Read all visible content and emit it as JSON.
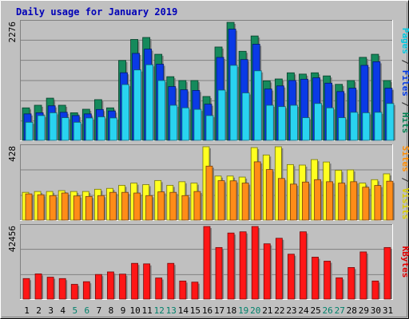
{
  "chart_data": {
    "type": "bar",
    "title": "Daily usage for January 2019",
    "categories": [
      "1",
      "2",
      "3",
      "4",
      "5",
      "6",
      "7",
      "8",
      "9",
      "10",
      "11",
      "12",
      "13",
      "14",
      "15",
      "16",
      "17",
      "18",
      "19",
      "20",
      "21",
      "22",
      "23",
      "24",
      "25",
      "26",
      "27",
      "28",
      "29",
      "30",
      "31"
    ],
    "weekend_days": [
      "5",
      "6",
      "12",
      "13",
      "19",
      "20",
      "26",
      "27"
    ],
    "panels": [
      {
        "id": "hits",
        "max_label": "2276",
        "ymax": 2276,
        "axis_title": [
          {
            "text": "Pages",
            "color": "#00c8e0"
          },
          {
            "text": " / ",
            "color": "#222222"
          },
          {
            "text": "Files",
            "color": "#0038e8"
          },
          {
            "text": " / ",
            "color": "#222222"
          },
          {
            "text": "Hits",
            "color": "#008050"
          }
        ],
        "series": [
          {
            "name": "Hits",
            "color": "#158a5c",
            "values": [
              627,
              677,
              814,
              677,
              532,
              600,
              785,
              627,
              1541,
              1946,
              1984,
              1660,
              1228,
              1154,
              1154,
              846,
              1800,
              2276,
              1718,
              2013,
              1147,
              1184,
              1303,
              1278,
              1303,
              1243,
              1080,
              1154,
              1601,
              1660,
              1154
            ]
          },
          {
            "name": "Files",
            "color": "#0a3ae6",
            "values": [
              510,
              532,
              666,
              541,
              478,
              510,
              595,
              566,
              1304,
              1677,
              1760,
              1469,
              1037,
              975,
              962,
              698,
              1600,
              2145,
              1558,
              1854,
              990,
              1050,
              1154,
              1179,
              1206,
              1103,
              941,
              1006,
              1446,
              1516,
              1006
            ]
          },
          {
            "name": "Pages",
            "color": "#29d3f0",
            "values": [
              349,
              478,
              532,
              437,
              349,
              432,
              454,
              432,
              1076,
              1358,
              1458,
              1154,
              677,
              627,
              598,
              478,
              969,
              1447,
              915,
              1341,
              677,
              651,
              677,
              437,
              711,
              627,
              437,
              541,
              532,
              541,
              711
            ]
          }
        ]
      },
      {
        "id": "visits",
        "max_label": "428",
        "ymax": 428,
        "axis_title": [
          {
            "text": "Sites",
            "color": "#ff8c00"
          },
          {
            "text": " / ",
            "color": "#222222"
          },
          {
            "text": "Visits",
            "color": "#d8cc00"
          }
        ],
        "series": [
          {
            "name": "Visits",
            "color": "#ffff20",
            "values": [
              162,
              167,
              167,
              172,
              167,
              167,
              180,
              185,
              203,
              216,
              207,
              231,
              203,
              224,
              216,
              428,
              257,
              257,
              251,
              423,
              380,
              428,
              324,
              321,
              353,
              339,
              291,
              293,
              216,
              236,
              270
            ]
          },
          {
            "name": "Sites",
            "color": "#ff8c18",
            "values": [
              153,
              148,
              143,
              158,
              141,
              138,
              143,
              162,
              162,
              158,
              143,
              165,
              162,
              143,
              167,
              315,
              230,
              229,
              216,
              340,
              295,
              243,
              210,
              222,
              236,
              224,
              216,
              224,
              192,
              202,
              227
            ]
          }
        ]
      },
      {
        "id": "kbytes",
        "max_label": "42456",
        "ymax": 42456,
        "axis_title": [
          {
            "text": "KBytes",
            "color": "#e00000"
          }
        ],
        "series": [
          {
            "name": "KBytes",
            "color": "#ff1616",
            "values": [
              12000,
              14740,
              12800,
              12000,
              8630,
              10170,
              14380,
              15880,
              14600,
              20900,
              20600,
              12340,
              20900,
              10560,
              9910,
              42456,
              30160,
              38640,
              39340,
              42456,
              32330,
              35580,
              26260,
              39340,
              24520,
              22180,
              12440,
              18460,
              27570,
              10560,
              30160
            ]
          }
        ]
      }
    ]
  }
}
